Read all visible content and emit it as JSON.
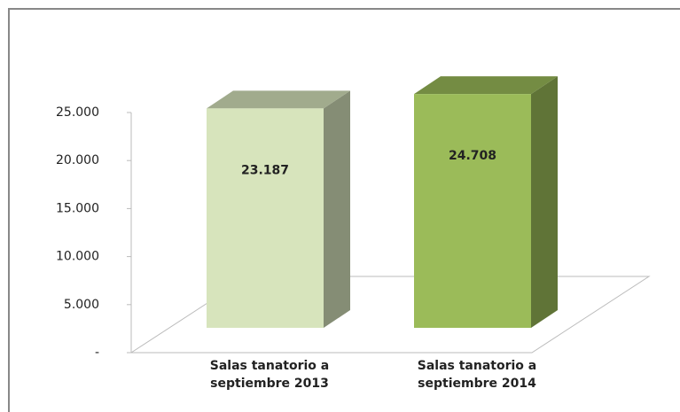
{
  "chart_data": {
    "type": "bar3d",
    "categories": [
      "Salas tanatorio a septiembre 2013",
      "Salas tanatorio a septiembre 2014"
    ],
    "values": [
      23187,
      24708
    ],
    "value_labels": [
      "23.187",
      "24.708"
    ],
    "colors": [
      "#d7e4bc",
      "#9bbb59"
    ],
    "ylim": [
      0,
      25000
    ],
    "yticks": [
      {
        "value": 0,
        "label": "-"
      },
      {
        "value": 5000,
        "label": "5.000"
      },
      {
        "value": 10000,
        "label": "10.000"
      },
      {
        "value": 15000,
        "label": "15.000"
      },
      {
        "value": 20000,
        "label": "20.000"
      },
      {
        "value": 25000,
        "label": "25.000"
      }
    ]
  }
}
